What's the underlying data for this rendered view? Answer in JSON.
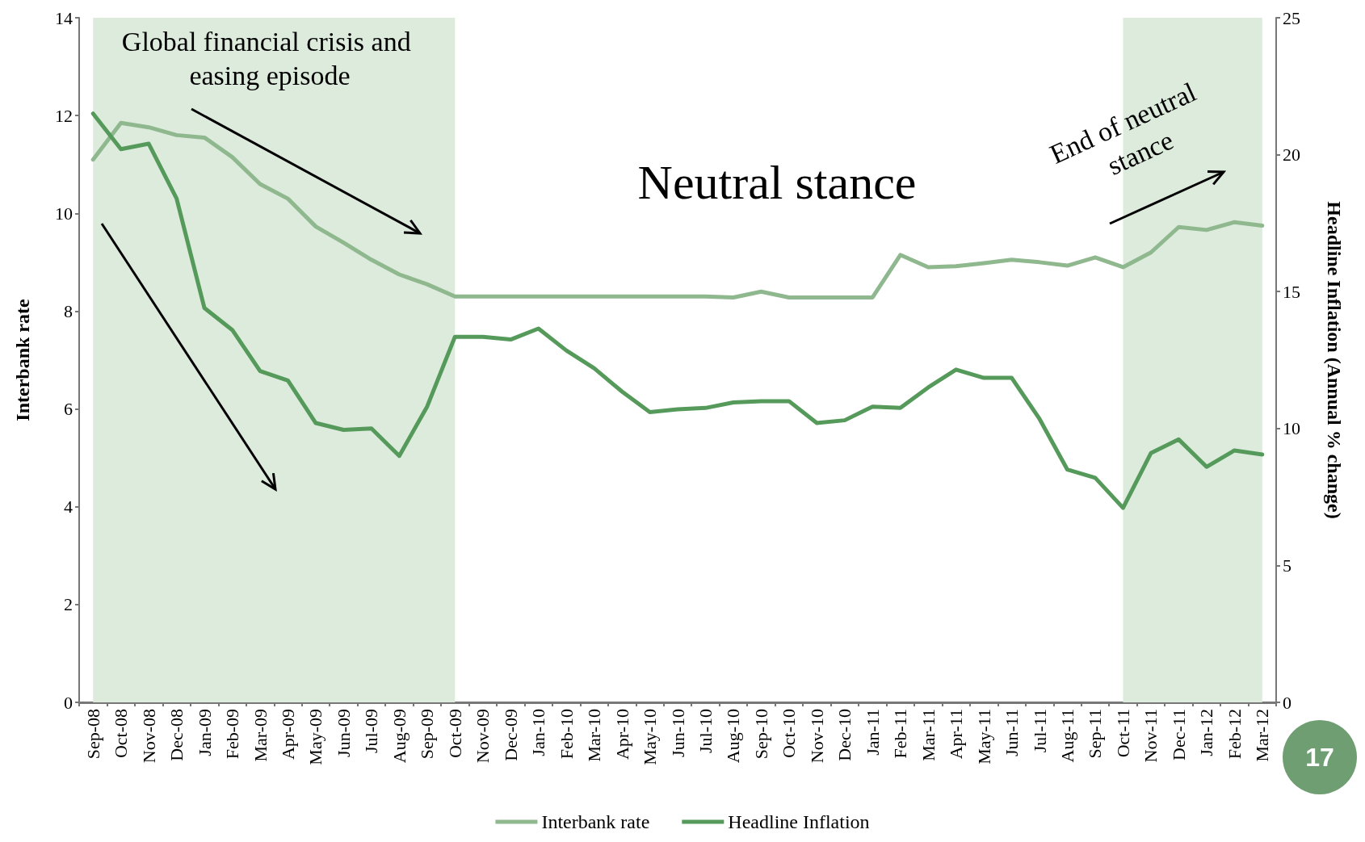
{
  "chart_data": {
    "type": "line",
    "categories": [
      "Sep-08",
      "Oct-08",
      "Nov-08",
      "Dec-08",
      "Jan-09",
      "Feb-09",
      "Mar-09",
      "Apr-09",
      "May-09",
      "Jun-09",
      "Jul-09",
      "Aug-09",
      "Sep-09",
      "Oct-09",
      "Nov-09",
      "Dec-09",
      "Jan-10",
      "Feb-10",
      "Mar-10",
      "Apr-10",
      "May-10",
      "Jun-10",
      "Jul-10",
      "Aug-10",
      "Sep-10",
      "Oct-10",
      "Nov-10",
      "Dec-10",
      "Jan-11",
      "Feb-11",
      "Mar-11",
      "Apr-11",
      "May-11",
      "Jun-11",
      "Jul-11",
      "Aug-11",
      "Sep-11",
      "Oct-11",
      "Nov-11",
      "Dec-11",
      "Jan-12",
      "Feb-12",
      "Mar-12"
    ],
    "series": [
      {
        "name": "Interbank rate",
        "color": "#8fb88f",
        "values": [
          11.1,
          11.85,
          11.76,
          11.6,
          11.55,
          11.15,
          10.6,
          10.3,
          9.73,
          9.4,
          9.05,
          8.75,
          8.55,
          8.3,
          8.3,
          8.3,
          8.3,
          8.3,
          8.3,
          8.3,
          8.3,
          8.3,
          8.3,
          8.28,
          8.4,
          8.28,
          8.28,
          8.28,
          8.28,
          9.15,
          8.9,
          8.92,
          8.98,
          9.05,
          9.0,
          8.93,
          9.1,
          8.9,
          9.2,
          9.72,
          9.66,
          9.82,
          9.75
        ]
      },
      {
        "name": "Headline Inflation",
        "color": "#559a5a",
        "axis": "y2",
        "values": [
          21.5,
          20.2,
          20.4,
          18.4,
          14.4,
          13.6,
          12.1,
          11.75,
          10.2,
          9.95,
          10.0,
          9.0,
          10.8,
          13.35,
          13.35,
          13.25,
          13.65,
          12.85,
          12.2,
          11.35,
          10.6,
          10.7,
          10.75,
          10.95,
          11.0,
          11.0,
          10.2,
          10.3,
          10.8,
          10.75,
          11.5,
          12.15,
          11.85,
          11.85,
          10.35,
          8.5,
          8.2,
          7.1,
          9.1,
          9.6,
          8.6,
          9.2,
          9.05
        ]
      }
    ],
    "ylabel": "Interbank rate",
    "y2label": "Headline Inflation (Annual % change)",
    "ylim": [
      0,
      14
    ],
    "yticks": [
      0,
      2,
      4,
      6,
      8,
      10,
      12,
      14
    ],
    "y2lim": [
      0,
      25
    ],
    "y2ticks": [
      0,
      5,
      10,
      15,
      20,
      25
    ],
    "bands": [
      {
        "axis": "x",
        "from": "Sep-08",
        "to": "Oct-09",
        "color": "#dcebdc"
      },
      {
        "axis": "x",
        "from": "Oct-11",
        "to": "Mar-12",
        "color": "#dcebdc"
      }
    ],
    "annotations": [
      "Global financial crisis and easing episode",
      "Neutral stance",
      "End of neutral stance",
      "17"
    ],
    "legend": "bottom",
    "grid": false,
    "marker": "none",
    "line_style": "solid"
  }
}
